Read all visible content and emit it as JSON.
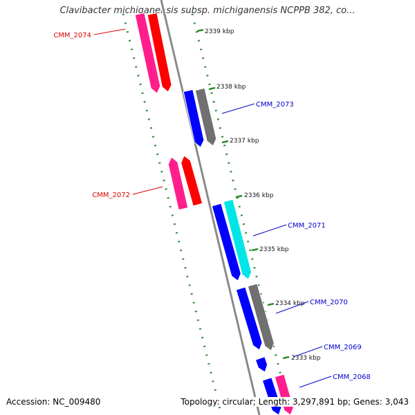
{
  "title": "Clavibacter michiganensis subsp. michiganensis NCPPB 382, co...",
  "footer": {
    "accession": "Accession: NC_009480",
    "stats": "Topology: circular; Length: 3,297,891 bp; Genes: 3,043"
  },
  "colors": {
    "backbone": "#888888",
    "tick_green": "#2e8b2e",
    "label_red": "#dd0000",
    "label_blue": "#0000cc"
  },
  "ticks": [
    {
      "label": "2339 kbp"
    },
    {
      "label": "2338 kbp"
    },
    {
      "label": "2337 kbp"
    },
    {
      "label": "2336 kbp"
    },
    {
      "label": "2335 kbp"
    },
    {
      "label": "2334 kbp"
    },
    {
      "label": "2333 kbp"
    }
  ],
  "gene_labels": [
    {
      "text": "CMM_2074",
      "color": "red"
    },
    {
      "text": "CMM_2073",
      "color": "blue"
    },
    {
      "text": "CMM_2072",
      "color": "red"
    },
    {
      "text": "CMM_2071",
      "color": "blue"
    },
    {
      "text": "CMM_2070",
      "color": "blue"
    },
    {
      "text": "CMM_2069",
      "color": "blue"
    },
    {
      "text": "CMM_2068",
      "color": "blue"
    }
  ],
  "features": [
    {
      "name": "CMM_2074 gene",
      "color": "#ff1e8c",
      "strand": "reverse"
    },
    {
      "name": "CMM_2074 CDS",
      "color": "#ff0000",
      "strand": "reverse"
    },
    {
      "name": "CMM_2073 gene",
      "color": "#0000ff",
      "strand": "forward"
    },
    {
      "name": "CMM_2073 CDS",
      "color": "#707070",
      "strand": "forward"
    },
    {
      "name": "CMM_2072 gene",
      "color": "#ff1e8c",
      "strand": "reverse"
    },
    {
      "name": "CMM_2072 CDS",
      "color": "#ff0000",
      "strand": "reverse"
    },
    {
      "name": "CMM_2071 gene",
      "color": "#0000ff",
      "strand": "forward"
    },
    {
      "name": "CMM_2071 CDS",
      "color": "#00e5e5",
      "strand": "forward"
    },
    {
      "name": "CMM_2070 gene",
      "color": "#0000ff",
      "strand": "forward"
    },
    {
      "name": "CMM_2070 CDS",
      "color": "#707070",
      "strand": "forward"
    },
    {
      "name": "CMM_2069 gene",
      "color": "#0000ff",
      "strand": "forward"
    },
    {
      "name": "CMM_2068 gene",
      "color": "#0000ff",
      "strand": "forward"
    },
    {
      "name": "CMM_2068 CDS",
      "color": "#ff1e8c",
      "strand": "forward"
    }
  ]
}
